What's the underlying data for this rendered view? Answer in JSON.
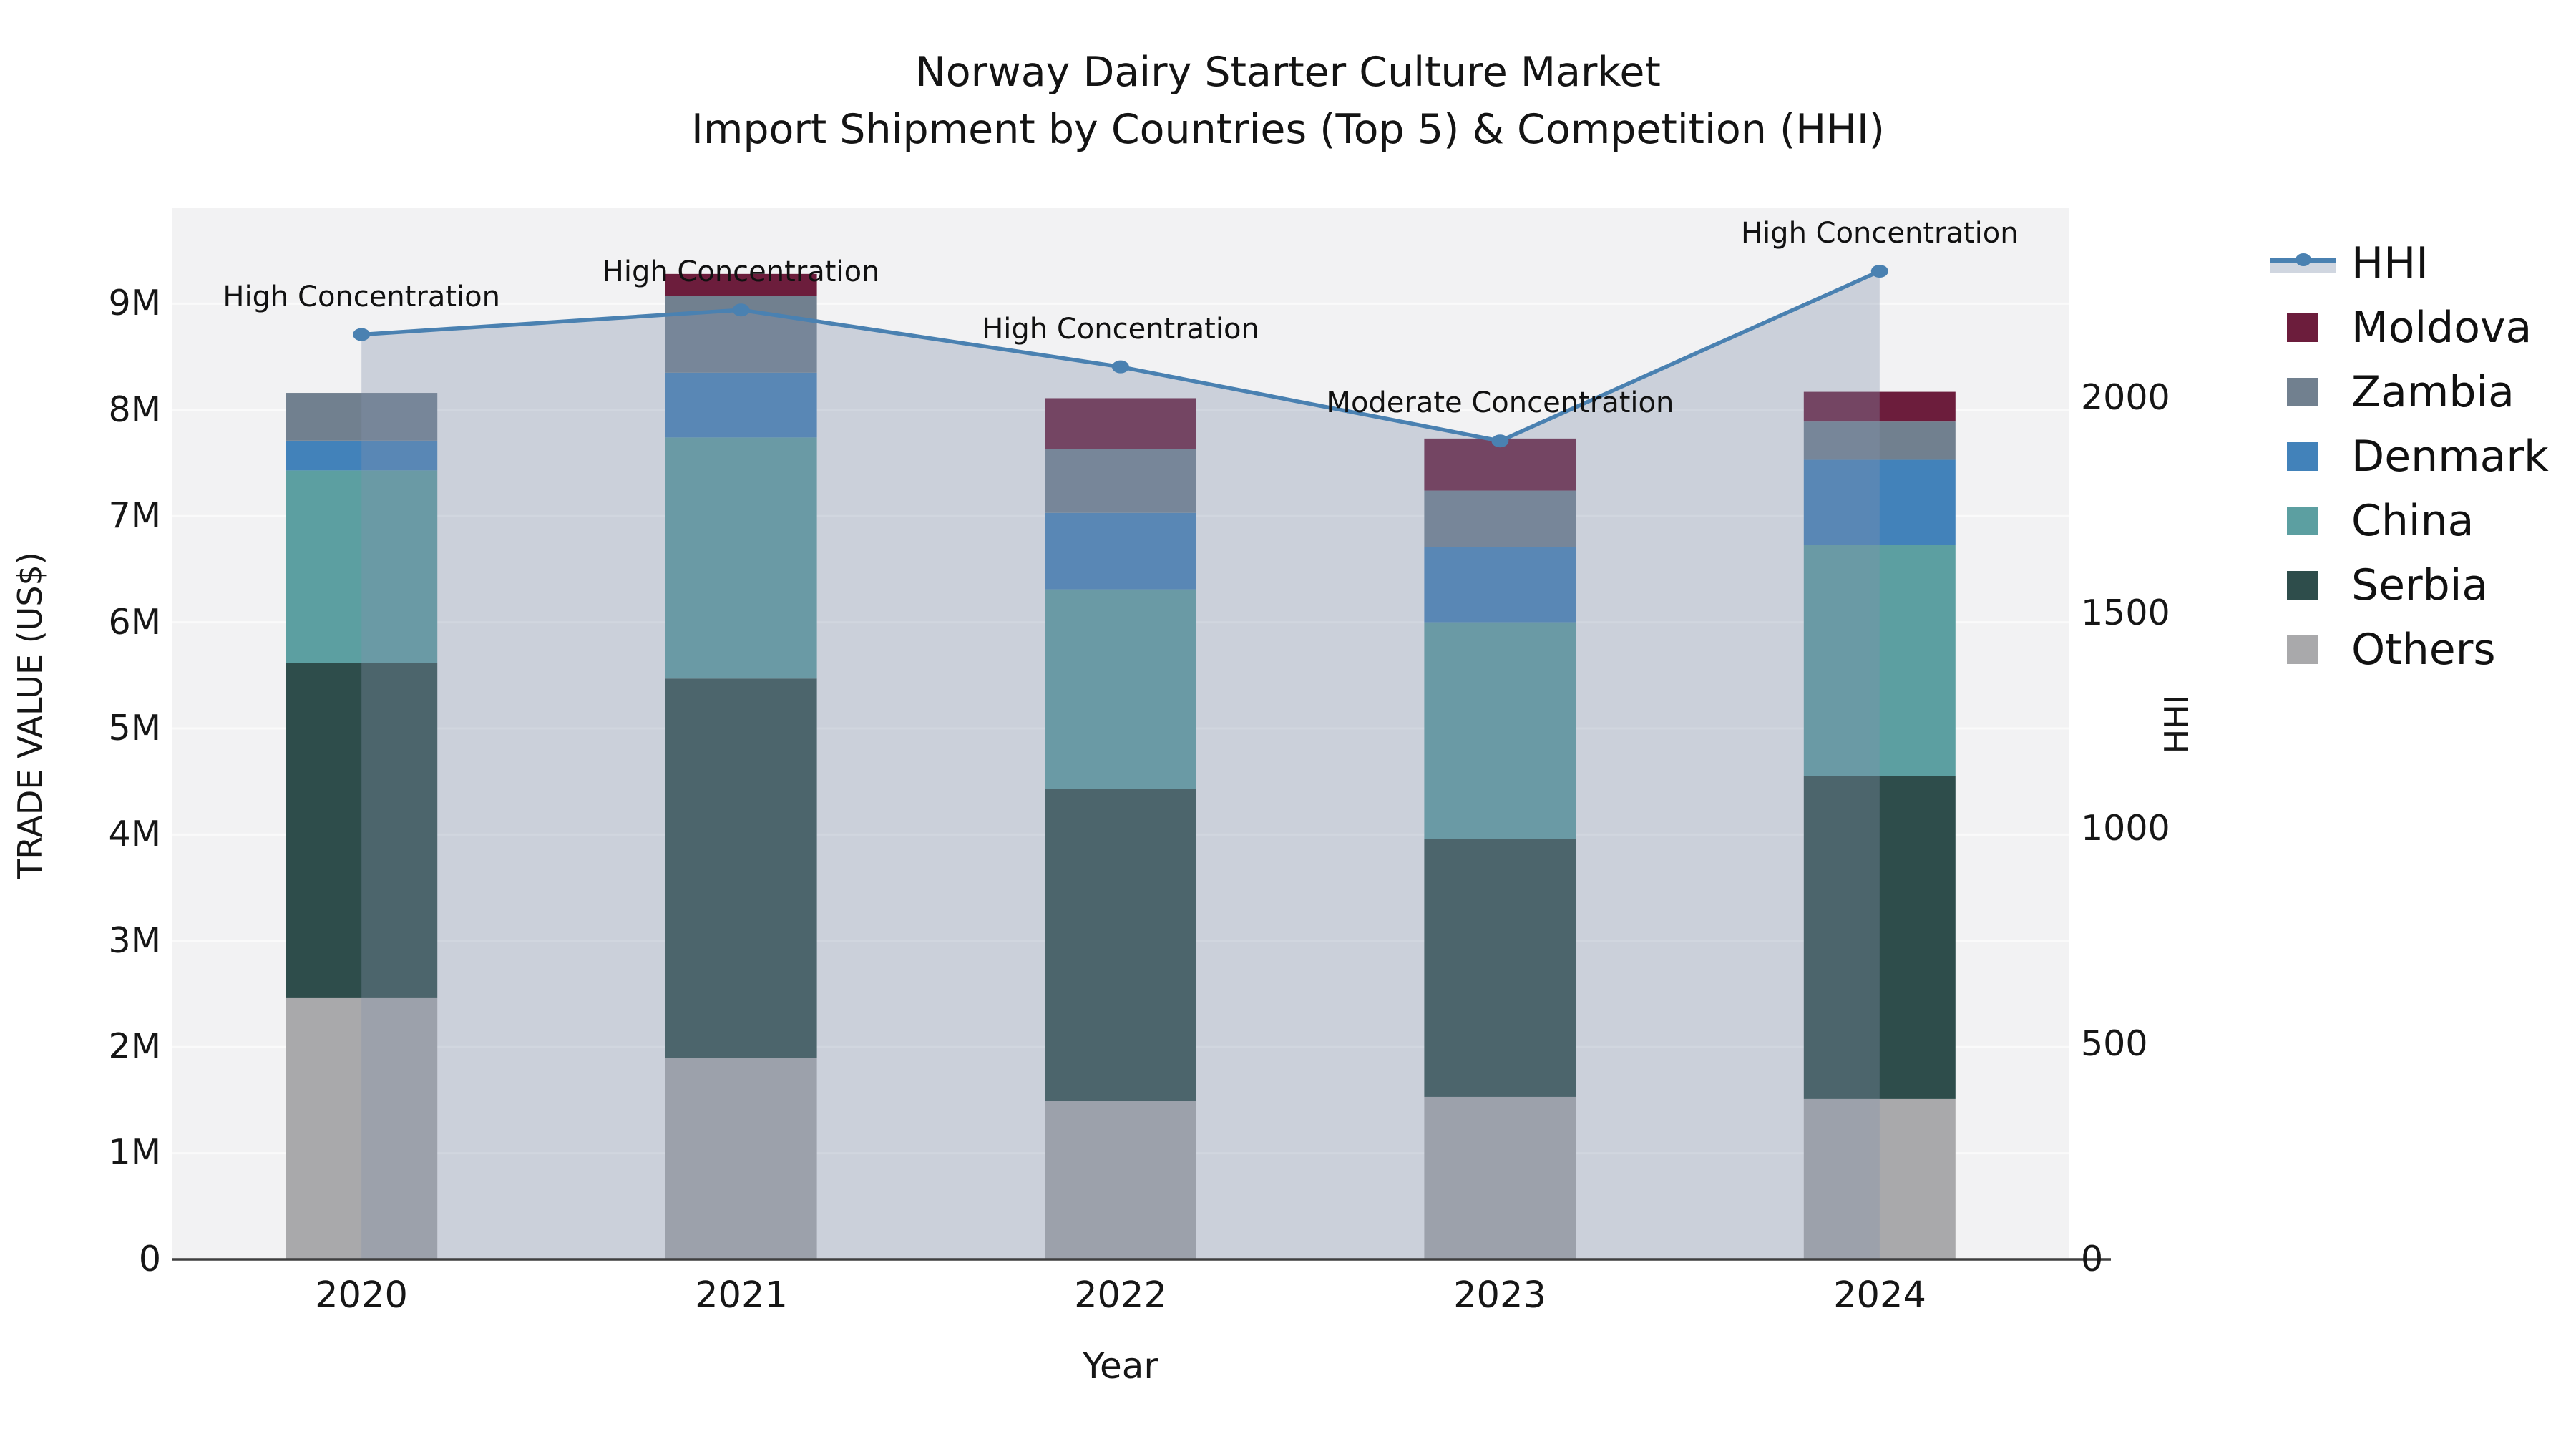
{
  "title": {
    "line1": "Norway Dairy Starter Culture Market",
    "line2": "Import Shipment by Countries (Top 5) & Competition (HHI)"
  },
  "chart_data": {
    "type": "combo-stacked-bar-with-line-area",
    "x": [
      "2020",
      "2021",
      "2022",
      "2023",
      "2024"
    ],
    "unit": "US$ millions",
    "series": [
      {
        "name": "Others",
        "color": "#a9a9ab",
        "values": [
          2.46,
          1.9,
          1.49,
          1.53,
          1.51
        ]
      },
      {
        "name": "Serbia",
        "color": "#2e4d4b",
        "values": [
          3.16,
          3.57,
          2.94,
          2.43,
          3.04
        ]
      },
      {
        "name": "China",
        "color": "#5c9fa1",
        "values": [
          1.81,
          2.27,
          1.88,
          2.04,
          2.18
        ]
      },
      {
        "name": "Denmark",
        "color": "#4282ba",
        "values": [
          0.28,
          0.61,
          0.72,
          0.71,
          0.8
        ]
      },
      {
        "name": "Zambia",
        "color": "#71808f",
        "values": [
          0.45,
          0.72,
          0.6,
          0.53,
          0.36
        ]
      },
      {
        "name": "Moldova",
        "color": "#6c1d3c",
        "values": [
          0.0,
          0.21,
          0.48,
          0.49,
          0.28
        ]
      }
    ],
    "hhi": {
      "name": "HHI",
      "line_color": "#4a81b1",
      "area_fill": "rgba(133,147,173,0.35)",
      "values": [
        2147,
        2204,
        2072,
        1900,
        2294
      ]
    },
    "annotations": [
      "High Concentration",
      "High Concentration",
      "High Concentration",
      "Moderate Concentration",
      "High Concentration"
    ],
    "left_axis": {
      "title": "TRADE VALUE (US$)",
      "ticks": [
        "0",
        "1M",
        "2M",
        "3M",
        "4M",
        "5M",
        "6M",
        "7M",
        "8M",
        "9M"
      ],
      "tick_values_millions": [
        0,
        1,
        2,
        3,
        4,
        5,
        6,
        7,
        8,
        9
      ]
    },
    "right_axis": {
      "title": "HHI",
      "ticks": [
        "0",
        "500",
        "1000",
        "1500",
        "2000"
      ],
      "tick_values": [
        0,
        500,
        1000,
        1500,
        2000
      ]
    },
    "x_axis": {
      "title": "Year"
    },
    "legend": [
      {
        "label": "HHI",
        "color": "#4a81b1",
        "kind": "line"
      },
      {
        "label": "Moldova",
        "color": "#6c1d3c",
        "kind": "patch"
      },
      {
        "label": "Zambia",
        "color": "#71808f",
        "kind": "patch"
      },
      {
        "label": "Denmark",
        "color": "#4282ba",
        "kind": "patch"
      },
      {
        "label": "China",
        "color": "#5c9fa1",
        "kind": "patch"
      },
      {
        "label": "Serbia",
        "color": "#2e4d4b",
        "kind": "patch"
      },
      {
        "label": "Others",
        "color": "#a9a9ab",
        "kind": "patch"
      }
    ],
    "style": {
      "plot_bg": "#f2f2f3",
      "grid_color": "#fafafa",
      "spine_color": "#3f3f3f",
      "text_color": "#161616"
    }
  }
}
